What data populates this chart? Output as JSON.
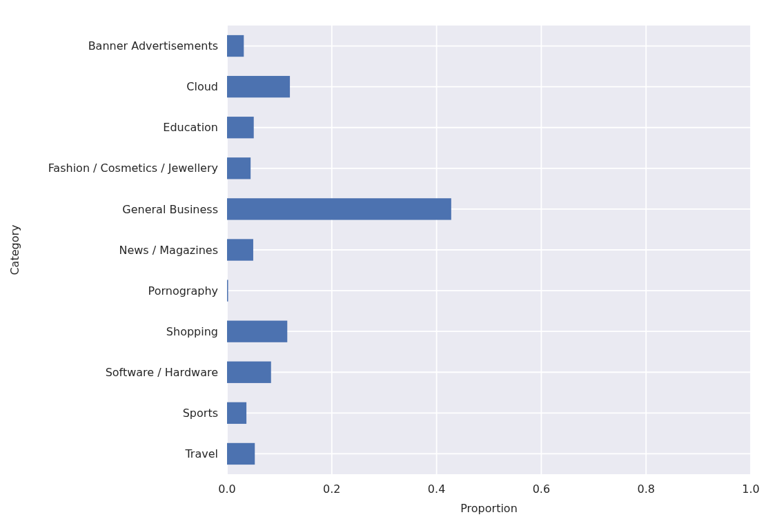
{
  "chart_data": {
    "type": "bar",
    "orientation": "horizontal",
    "xlabel": "Proportion",
    "ylabel": "Category",
    "categories": [
      "Banner Advertisements",
      "Cloud",
      "Education",
      "Fashion / Cosmetics / Jewellery",
      "General Business",
      "News / Magazines",
      "Pornography",
      "Shopping",
      "Software / Hardware",
      "Sports",
      "Travel"
    ],
    "values": [
      0.032,
      0.12,
      0.051,
      0.045,
      0.428,
      0.05,
      0.002,
      0.115,
      0.084,
      0.037,
      0.053
    ],
    "color": "#4c72b0",
    "xlim": [
      0,
      1
    ],
    "xticks": [
      {
        "value": 0,
        "label": "0.0"
      },
      {
        "value": 0.2,
        "label": "0.2"
      },
      {
        "value": 0.4,
        "label": "0.4"
      },
      {
        "value": 0.6,
        "label": "0.6"
      },
      {
        "value": 0.8,
        "label": "0.8"
      },
      {
        "value": 1,
        "label": "1.0"
      }
    ],
    "grid": true
  }
}
